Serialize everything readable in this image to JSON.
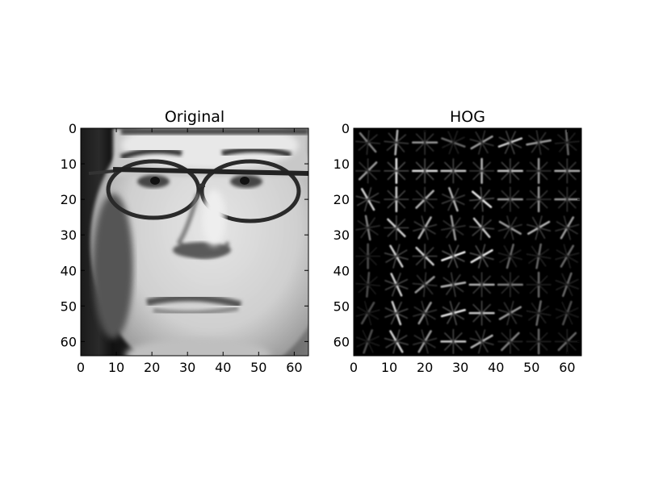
{
  "chart_data": [
    {
      "type": "heatmap",
      "title": "Original",
      "xlim": [
        0,
        64
      ],
      "ylim": [
        64,
        0
      ],
      "xticks": [
        "0",
        "10",
        "20",
        "30",
        "40",
        "50",
        "60"
      ],
      "yticks": [
        "0",
        "10",
        "20",
        "30",
        "40",
        "50",
        "60"
      ],
      "colormap": "gray",
      "content": "grayscale face photograph with glasses"
    },
    {
      "type": "heatmap",
      "title": "HOG",
      "xlim": [
        0,
        64
      ],
      "ylim": [
        64,
        0
      ],
      "xticks": [
        "0",
        "10",
        "20",
        "30",
        "40",
        "50",
        "60"
      ],
      "yticks": [
        "0",
        "10",
        "20",
        "30",
        "40",
        "50",
        "60"
      ],
      "colormap": "gray",
      "content": "histogram of oriented gradients, 8x8 cells",
      "cells": [
        [
          [
            130,
            0.5
          ],
          [
            85,
            0.7
          ],
          [
            0,
            0.6
          ],
          [
            160,
            0.4
          ],
          [
            30,
            0.6
          ],
          [
            20,
            0.8
          ],
          [
            10,
            0.6
          ],
          [
            95,
            0.4
          ]
        ],
        [
          [
            45,
            0.6
          ],
          [
            90,
            0.9
          ],
          [
            0,
            0.9
          ],
          [
            0,
            0.8
          ],
          [
            90,
            0.7
          ],
          [
            0,
            0.8
          ],
          [
            90,
            0.6
          ],
          [
            0,
            0.7
          ]
        ],
        [
          [
            120,
            0.8
          ],
          [
            90,
            0.8
          ],
          [
            45,
            0.7
          ],
          [
            110,
            0.7
          ],
          [
            140,
            0.9
          ],
          [
            0,
            0.6
          ],
          [
            90,
            0.6
          ],
          [
            0,
            0.6
          ]
        ],
        [
          [
            100,
            0.5
          ],
          [
            135,
            0.8
          ],
          [
            60,
            0.7
          ],
          [
            100,
            0.6
          ],
          [
            130,
            0.8
          ],
          [
            150,
            0.6
          ],
          [
            30,
            0.7
          ],
          [
            60,
            0.6
          ]
        ],
        [
          [
            90,
            0.3
          ],
          [
            120,
            0.8
          ],
          [
            135,
            0.8
          ],
          [
            20,
            0.95
          ],
          [
            30,
            0.9
          ],
          [
            75,
            0.4
          ],
          [
            80,
            0.4
          ],
          [
            60,
            0.4
          ]
        ],
        [
          [
            85,
            0.3
          ],
          [
            115,
            0.8
          ],
          [
            40,
            0.6
          ],
          [
            10,
            0.7
          ],
          [
            0,
            0.7
          ],
          [
            0,
            0.5
          ],
          [
            90,
            0.4
          ],
          [
            70,
            0.4
          ]
        ],
        [
          [
            60,
            0.3
          ],
          [
            110,
            0.8
          ],
          [
            60,
            0.6
          ],
          [
            15,
            0.9
          ],
          [
            0,
            0.8
          ],
          [
            30,
            0.6
          ],
          [
            80,
            0.4
          ],
          [
            70,
            0.3
          ]
        ],
        [
          [
            70,
            0.3
          ],
          [
            120,
            0.8
          ],
          [
            60,
            0.6
          ],
          [
            0,
            0.8
          ],
          [
            30,
            0.7
          ],
          [
            45,
            0.5
          ],
          [
            90,
            0.4
          ],
          [
            45,
            0.4
          ]
        ]
      ]
    }
  ]
}
